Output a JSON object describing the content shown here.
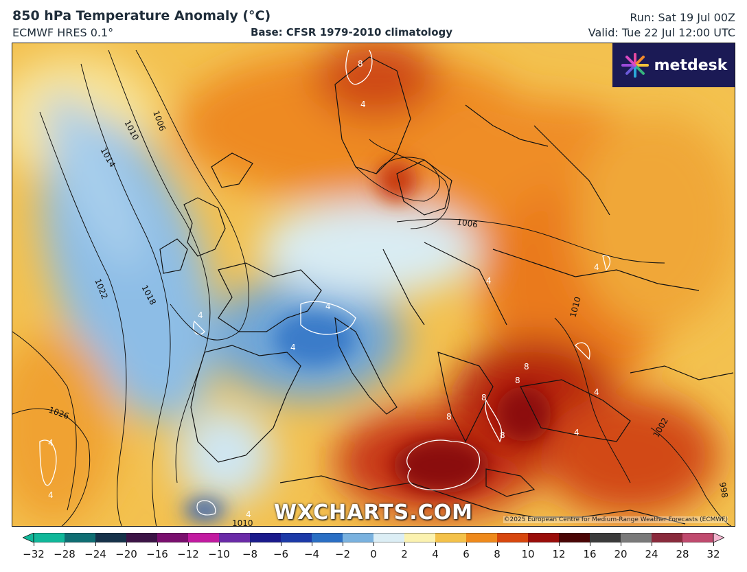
{
  "header": {
    "title": "850 hPa Temperature Anomaly (°C)",
    "model": "ECMWF HRES 0.1°",
    "base": "Base: CFSR 1979-2010 climatology",
    "run": "Run: Sat 19 Jul 00Z",
    "valid": "Valid: Tue 22 Jul 12:00 UTC"
  },
  "logo": {
    "text": "metdesk",
    "icon": "metdesk-burst-icon"
  },
  "watermark": "WXCHARTS.COM",
  "copyright": "©2025 European Centre for Medium-Range Weather Forecasts (ECMWF)",
  "isobar_labels": [
    "1006",
    "1010",
    "1014",
    "1018",
    "1022",
    "1026",
    "1006",
    "1010",
    "998",
    "1010",
    "1002"
  ],
  "anomaly_labels": [
    "8",
    "4",
    "4",
    "4",
    "4",
    "4",
    "4",
    "4",
    "4",
    "8",
    "8",
    "8",
    "8",
    "8",
    "4",
    "4",
    "4"
  ],
  "colorbar": {
    "ticks": [
      "−32",
      "−28",
      "−24",
      "−20",
      "−16",
      "−12",
      "−10",
      "−8",
      "−6",
      "−4",
      "−2",
      "0",
      "2",
      "4",
      "6",
      "8",
      "10",
      "12",
      "16",
      "20",
      "24",
      "28",
      "32"
    ],
    "colors": [
      "#10b89a",
      "#0f6e73",
      "#16324a",
      "#3c1446",
      "#7a0f6e",
      "#c21aa0",
      "#6a2aa8",
      "#1a1a8c",
      "#1c3aa8",
      "#2a6fc4",
      "#7ab2df",
      "#dceef5",
      "#fbf2b0",
      "#f4c24a",
      "#ef8a1c",
      "#d8470e",
      "#9a0d0a",
      "#4a0606",
      "#3b3b3b",
      "#7a7a7a",
      "#8a2a3c",
      "#c04a6e",
      "#f0a8c8"
    ]
  }
}
